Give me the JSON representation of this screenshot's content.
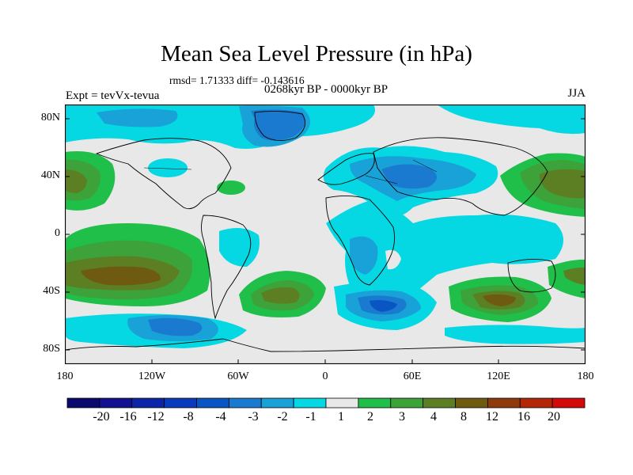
{
  "title": "Mean Sea Level Pressure (in hPa)",
  "stats": "rmsd= 1.71333 diff= -0.143616",
  "period": "0268kyr BP - 0000kyr BP",
  "experiment": "Expt = tevVx-tevua",
  "season": "JJA",
  "lat_ticks": [
    "80N",
    "40N",
    "0",
    "40S",
    "80S"
  ],
  "lon_ticks": [
    "180",
    "120W",
    "60W",
    "0",
    "60E",
    "120E",
    "180"
  ],
  "colorbar": {
    "labels": [
      "-20",
      "-16",
      "-12",
      "-8",
      "-4",
      "-3",
      "-2",
      "-1",
      "1",
      "2",
      "3",
      "4",
      "8",
      "12",
      "16",
      "20"
    ],
    "colors": [
      "#0a0a6e",
      "#13118f",
      "#0c25a8",
      "#0a3bbc",
      "#0a55c4",
      "#1a7ad0",
      "#18a2d8",
      "#05d8e3",
      "#e8e8e8",
      "#1fbf4a",
      "#3ea23a",
      "#5c7f24",
      "#6e5a10",
      "#8e3a0c",
      "#b42608",
      "#d20a0a"
    ]
  },
  "palette": {
    "neutral": "#e8e8e8",
    "neg1": "#05d8e3",
    "neg2": "#18a2d8",
    "neg3": "#1a7ad0",
    "neg4": "#0a55c4",
    "neg5": "#0a3bbc",
    "pos1": "#1fbf4a",
    "pos2": "#3ea23a",
    "pos3": "#5c7f24",
    "pos4": "#6e5a10"
  }
}
